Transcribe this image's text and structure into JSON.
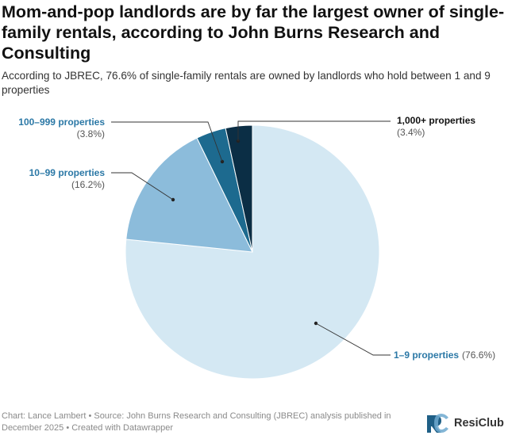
{
  "title": "Mom-and-pop landlords are by far the largest owner of single-family rentals, according to John Burns Research and Consulting",
  "subtitle": "According to JBREC, 76.6% of single-family rentals are owned by landlords who hold between 1 and 9 properties",
  "chart_data": {
    "type": "pie",
    "slices": [
      {
        "label": "1–9 properties",
        "value_label": "(76.6%)",
        "value": 76.6,
        "color": "#d4e8f3"
      },
      {
        "label": "10–99 properties",
        "value_label": "(16.2%)",
        "value": 16.2,
        "color": "#8cbcdb"
      },
      {
        "label": "100–999 properties",
        "value_label": "(3.8%)",
        "value": 3.8,
        "color": "#1d6a8f"
      },
      {
        "label": "1,000+ properties",
        "value_label": "(3.4%)",
        "value": 3.4,
        "color": "#0b2e45"
      }
    ],
    "label_colors": {
      "1–9 properties": "#2b78a6",
      "10–99 properties": "#2b78a6",
      "100–999 properties": "#2b78a6",
      "1,000+ properties": "#111111"
    }
  },
  "footer": "Chart: Lance Lambert • Source: John Burns Research and Consulting (JBREC) analysis published in December 2025 • Created with Datawrapper",
  "brand": {
    "name": "ResiClub",
    "icon": "resiclub-logo-icon"
  }
}
